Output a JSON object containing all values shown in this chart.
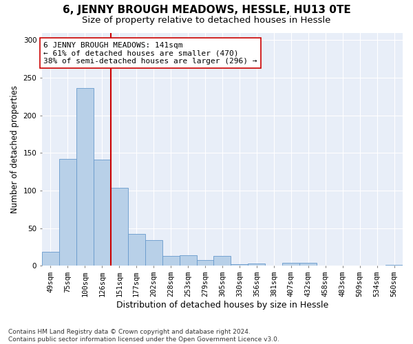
{
  "title": "6, JENNY BROUGH MEADOWS, HESSLE, HU13 0TE",
  "subtitle": "Size of property relative to detached houses in Hessle",
  "xlabel": "Distribution of detached houses by size in Hessle",
  "ylabel": "Number of detached properties",
  "categories": [
    "49sqm",
    "75sqm",
    "100sqm",
    "126sqm",
    "151sqm",
    "177sqm",
    "202sqm",
    "228sqm",
    "253sqm",
    "279sqm",
    "305sqm",
    "330sqm",
    "356sqm",
    "381sqm",
    "407sqm",
    "432sqm",
    "458sqm",
    "483sqm",
    "509sqm",
    "534sqm",
    "560sqm"
  ],
  "values": [
    19,
    142,
    236,
    141,
    104,
    42,
    34,
    13,
    14,
    8,
    13,
    2,
    3,
    0,
    4,
    4,
    0,
    0,
    0,
    0,
    1
  ],
  "bar_color": "#b8d0e8",
  "bar_edge_color": "#6699cc",
  "vline_x": 3.5,
  "vline_color": "#cc0000",
  "annotation_text": "6 JENNY BROUGH MEADOWS: 141sqm\n← 61% of detached houses are smaller (470)\n38% of semi-detached houses are larger (296) →",
  "annotation_box_color": "#ffffff",
  "annotation_box_edge_color": "#cc0000",
  "ylim": [
    0,
    310
  ],
  "yticks": [
    0,
    50,
    100,
    150,
    200,
    250,
    300
  ],
  "plot_bg_color": "#e8eef8",
  "fig_bg_color": "#ffffff",
  "footnote": "Contains HM Land Registry data © Crown copyright and database right 2024.\nContains public sector information licensed under the Open Government Licence v3.0.",
  "title_fontsize": 11,
  "subtitle_fontsize": 9.5,
  "xlabel_fontsize": 9,
  "ylabel_fontsize": 8.5,
  "annotation_fontsize": 8,
  "tick_fontsize": 7.5,
  "footnote_fontsize": 6.5
}
